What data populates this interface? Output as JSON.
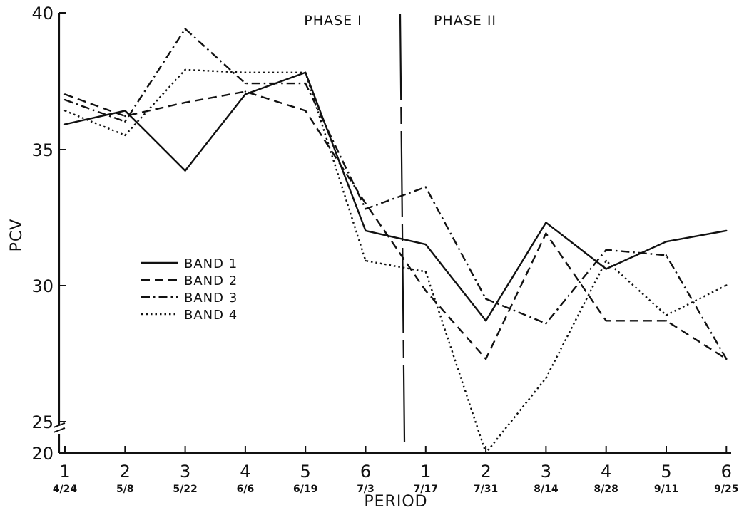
{
  "chart_data": {
    "type": "line",
    "xlabel": "PERIOD",
    "ylabel": "PCV",
    "y_ticks": [
      "40",
      "35",
      "30",
      "25",
      "20"
    ],
    "y_axis_break": "between 20 and 25",
    "x_categories": [
      {
        "period": "1",
        "date": "4/24"
      },
      {
        "period": "2",
        "date": "5/8"
      },
      {
        "period": "3",
        "date": "5/22"
      },
      {
        "period": "4",
        "date": "6/6"
      },
      {
        "period": "5",
        "date": "6/19"
      },
      {
        "period": "6",
        "date": "7/3"
      },
      {
        "period": "1",
        "date": "7/17"
      },
      {
        "period": "2",
        "date": "7/31"
      },
      {
        "period": "3",
        "date": "8/14"
      },
      {
        "period": "4",
        "date": "8/28"
      },
      {
        "period": "5",
        "date": "9/11"
      },
      {
        "period": "6",
        "date": "9/25"
      }
    ],
    "phases": [
      {
        "label": "PHASE I",
        "periods": "1-6"
      },
      {
        "label": "PHASE II",
        "periods": "7-12"
      }
    ],
    "legend_placement": "center-left",
    "series": [
      {
        "name": "BAND 1",
        "style": "solid",
        "values": [
          35.9,
          36.4,
          34.2,
          37.0,
          37.8,
          32.0,
          31.5,
          28.7,
          32.3,
          30.6,
          31.6,
          32.0
        ]
      },
      {
        "name": "BAND 2",
        "style": "dashed",
        "values": [
          37.0,
          36.2,
          36.7,
          37.1,
          36.4,
          33.0,
          29.8,
          27.3,
          31.9,
          28.7,
          28.7,
          27.3
        ]
      },
      {
        "name": "BAND 3",
        "style": "dash-dot",
        "values": [
          36.8,
          36.0,
          39.4,
          37.4,
          37.4,
          32.8,
          33.6,
          29.5,
          28.6,
          31.3,
          31.1,
          27.3
        ]
      },
      {
        "name": "BAND 4",
        "style": "dotted",
        "values": [
          36.4,
          35.5,
          37.9,
          37.8,
          37.8,
          30.9,
          30.5,
          20.0,
          26.6,
          30.9,
          28.9,
          30.0
        ]
      }
    ],
    "colors": {
      "ink": "#111111",
      "background": "#ffffff"
    }
  }
}
